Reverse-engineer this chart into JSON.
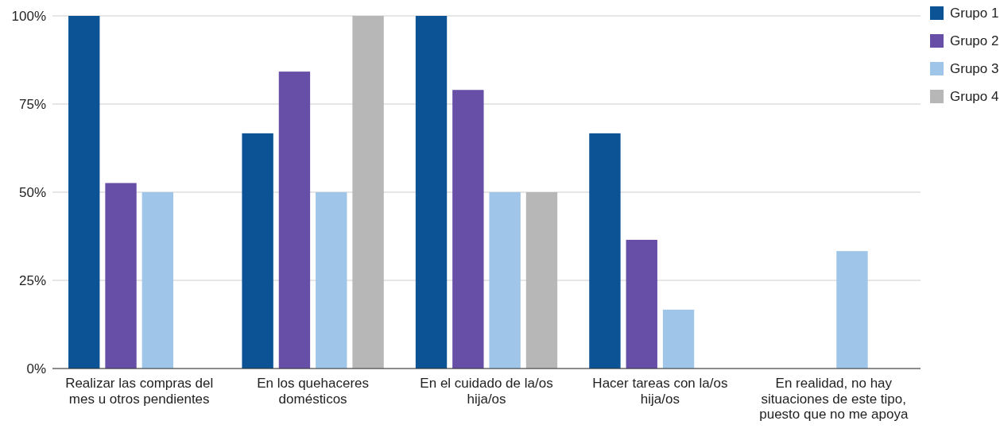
{
  "chart_data": {
    "type": "bar",
    "categories": [
      "Realizar las compras del mes u otros pendientes",
      "En los quehaceres domésticos",
      "En el cuidado de la/os hija/os",
      "Hacer tareas con la/os hija/os",
      "En realidad, no hay situaciones de este tipo, puesto que no me apoya"
    ],
    "series": [
      {
        "name": "Grupo 1",
        "color": "#0b5394",
        "values": [
          100,
          66.7,
          100,
          66.7,
          0
        ]
      },
      {
        "name": "Grupo 2",
        "color": "#674ea7",
        "values": [
          52.6,
          84.2,
          79,
          36.5,
          0
        ]
      },
      {
        "name": "Grupo 3",
        "color": "#9fc5e8",
        "values": [
          50,
          50,
          50,
          16.7,
          33.3
        ]
      },
      {
        "name": "Grupo 4",
        "color": "#b7b7b7",
        "values": [
          0,
          100,
          50,
          0,
          0
        ]
      }
    ],
    "ylim": [
      0,
      100
    ],
    "yticks": [
      {
        "value": 0,
        "label": "0%"
      },
      {
        "value": 25,
        "label": "25%"
      },
      {
        "value": 50,
        "label": "50%"
      },
      {
        "value": 75,
        "label": "75%"
      },
      {
        "value": 100,
        "label": "100%"
      }
    ],
    "grid": "y",
    "legend": "top right"
  }
}
